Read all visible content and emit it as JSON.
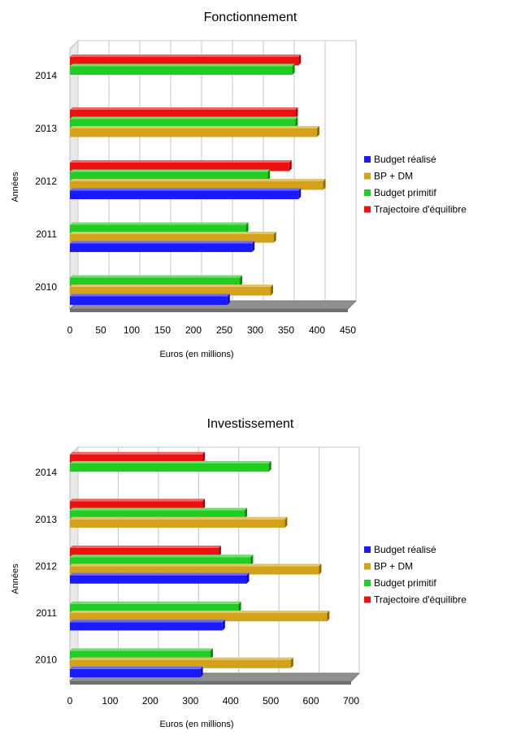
{
  "chart_data": [
    {
      "type": "bar",
      "orientation": "horizontal",
      "title": "Fonctionnement",
      "xlabel": "Euros (en millions)",
      "ylabel": "Années",
      "xlim": [
        0,
        450
      ],
      "xticks": [
        0,
        50,
        100,
        150,
        200,
        250,
        300,
        350,
        400,
        450
      ],
      "categories": [
        "2010",
        "2011",
        "2012",
        "2013",
        "2014"
      ],
      "grid": true,
      "legend_position": "right",
      "series": [
        {
          "name": "Budget réalisé",
          "color": "#1a1aff",
          "values": [
            255,
            295,
            370,
            null,
            null
          ]
        },
        {
          "name": "BP + DM",
          "color": "#d4a21a",
          "values": [
            325,
            330,
            410,
            400,
            null
          ]
        },
        {
          "name": "Budget primitif",
          "color": "#22cc22",
          "values": [
            275,
            285,
            320,
            365,
            360
          ]
        },
        {
          "name": "Trajectoire d'équilibre",
          "color": "#ee1111",
          "values": [
            null,
            null,
            355,
            365,
            370
          ]
        }
      ]
    },
    {
      "type": "bar",
      "orientation": "horizontal",
      "title": "Investissement",
      "xlabel": "Euros (en millions)",
      "ylabel": "Années",
      "xlim": [
        0,
        700
      ],
      "xticks": [
        0,
        100,
        200,
        300,
        400,
        500,
        600,
        700
      ],
      "categories": [
        "2010",
        "2011",
        "2012",
        "2013",
        "2014"
      ],
      "grid": true,
      "legend_position": "right",
      "series": [
        {
          "name": "Budget réalisé",
          "color": "#1a1aff",
          "values": [
            325,
            380,
            440,
            null,
            null
          ]
        },
        {
          "name": "BP + DM",
          "color": "#d4a21a",
          "values": [
            550,
            640,
            620,
            535,
            null
          ]
        },
        {
          "name": "Budget primitif",
          "color": "#22cc22",
          "values": [
            350,
            420,
            450,
            435,
            495
          ]
        },
        {
          "name": "Trajectoire d'équilibre",
          "color": "#ee1111",
          "values": [
            null,
            null,
            370,
            330,
            330
          ]
        }
      ]
    }
  ]
}
